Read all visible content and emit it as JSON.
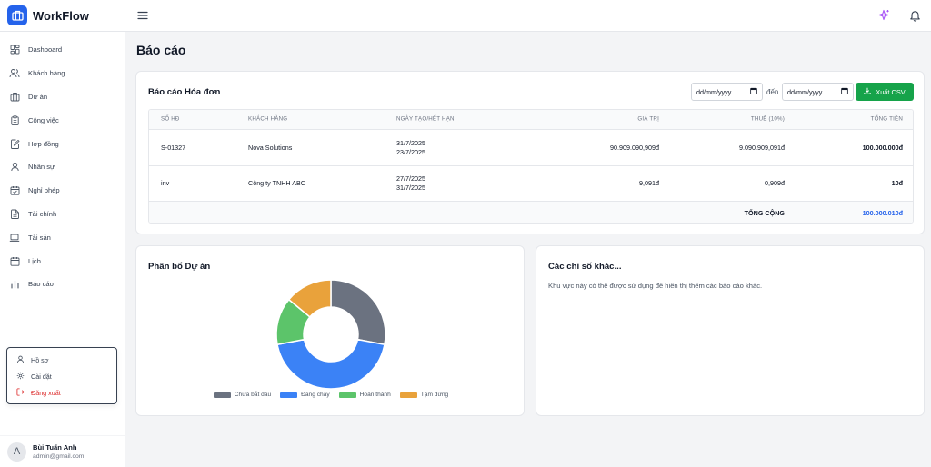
{
  "app": {
    "name": "WorkFlow"
  },
  "sidebar": {
    "items": [
      {
        "label": "Dashboard",
        "icon": "dashboard-icon"
      },
      {
        "label": "Khách hàng",
        "icon": "users-icon"
      },
      {
        "label": "Dự án",
        "icon": "briefcase-icon"
      },
      {
        "label": "Công việc",
        "icon": "clipboard-icon"
      },
      {
        "label": "Hợp đồng",
        "icon": "contract-icon"
      },
      {
        "label": "Nhân sự",
        "icon": "user-icon"
      },
      {
        "label": "Nghỉ phép",
        "icon": "calendar-check-icon"
      },
      {
        "label": "Tài chính",
        "icon": "document-icon"
      },
      {
        "label": "Tài sản",
        "icon": "laptop-icon"
      },
      {
        "label": "Lịch",
        "icon": "calendar-icon"
      },
      {
        "label": "Báo cáo",
        "icon": "bar-chart-icon"
      }
    ]
  },
  "user_menu": {
    "profile": "Hồ sơ",
    "settings": "Cài đặt",
    "logout": "Đăng xuất"
  },
  "user": {
    "initial": "A",
    "name": "Bùi Tuấn Anh",
    "email": "admin@gmail.com"
  },
  "page": {
    "title": "Báo cáo"
  },
  "invoice_report": {
    "title": "Báo cáo Hóa đơn",
    "date_from": "dd/mm/yyyy",
    "date_to": "dd/mm/yyyy",
    "to_label": "đến",
    "export_label": "Xuất CSV",
    "headers": {
      "number": "SỐ HĐ",
      "customer": "KHÁCH HÀNG",
      "dates": "NGÀY TẠO/HẾT HẠN",
      "value": "GIÁ TRỊ",
      "tax": "THUẾ (10%)",
      "total": "TỔNG TIỀN"
    },
    "rows": [
      {
        "number": "S-01327",
        "customer": "Nova Solutions",
        "created": "31/7/2025",
        "due": "23/7/2025",
        "value": "90.909.090,909đ",
        "tax": "9.090.909,091đ",
        "total": "100.000.000đ"
      },
      {
        "number": "inv",
        "customer": "Công ty TNHH ABC",
        "created": "27/7/2025",
        "due": "31/7/2025",
        "value": "9,091đ",
        "tax": "0,909đ",
        "total": "10đ"
      }
    ],
    "total_label": "TỔNG CỘNG",
    "grand_total": "100.000.010đ"
  },
  "project_chart": {
    "title": "Phân bổ Dự án"
  },
  "chart_data": {
    "type": "pie",
    "title": "Phân bổ Dự án",
    "categories": [
      "Chưa bắt đầu",
      "Đang chạy",
      "Hoàn thành",
      "Tạm dừng"
    ],
    "values": [
      28,
      44,
      14,
      14
    ],
    "colors": [
      "#6b7280",
      "#3b82f6",
      "#5cc46a",
      "#e9a23b"
    ],
    "legend": "bottom",
    "donut": true
  },
  "other_metrics": {
    "title": "Các chỉ số khác...",
    "text": "Khu vực này có thể được sử dụng để hiển thị thêm các báo cáo khác."
  }
}
